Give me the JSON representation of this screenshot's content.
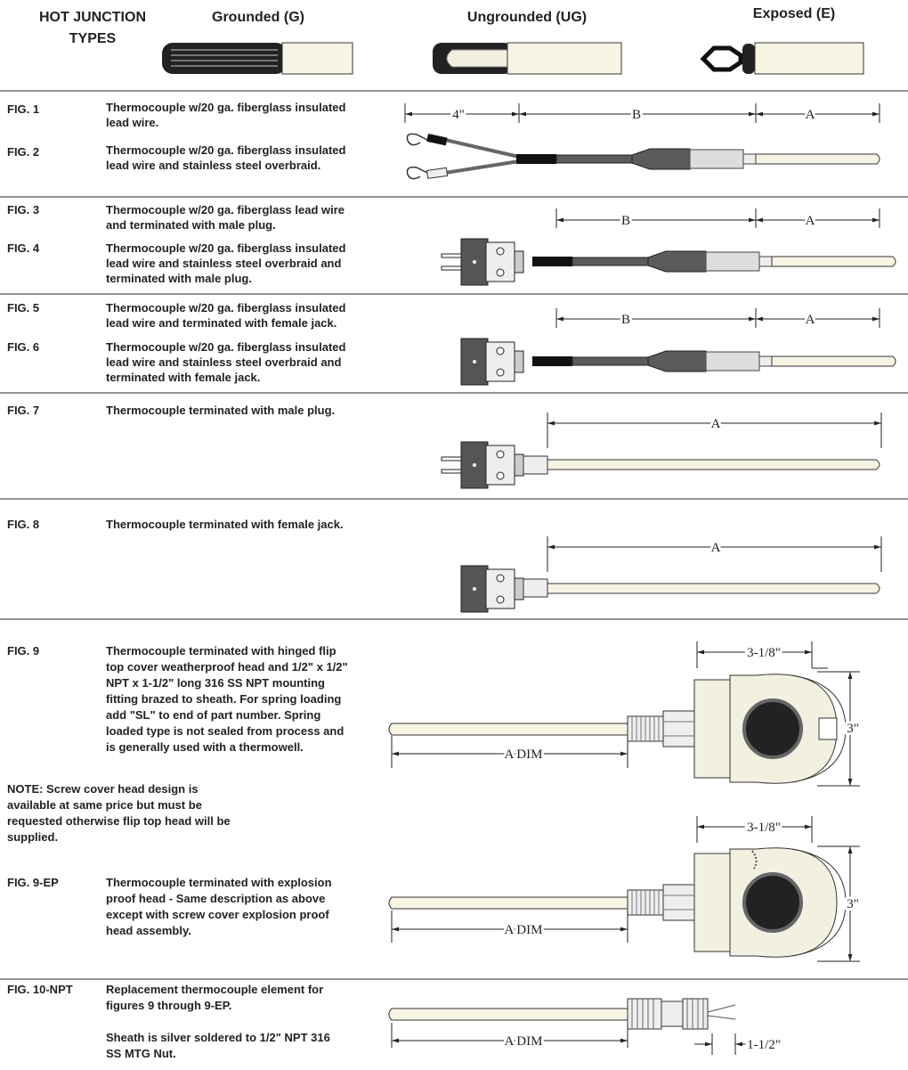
{
  "header": {
    "title_lines": [
      "HOT JUNCTION",
      "TYPES"
    ],
    "junctions": [
      "Grounded (G)",
      "Ungrounded (UG)",
      "Exposed (E)"
    ]
  },
  "sections": [
    {
      "figures": [
        {
          "label": "FIG. 1",
          "paragraphs": [
            [
              "Thermocouple w/20 ga. fiberglass insulated",
              "lead wire."
            ]
          ]
        },
        {
          "label": "FIG. 2",
          "paragraphs": [
            [
              "Thermocouple w/20 ga. fiberglass insulated",
              "lead wire and stainless steel overbraid."
            ]
          ]
        }
      ],
      "dims": [
        "4\"",
        "B",
        "A"
      ]
    },
    {
      "figures": [
        {
          "label": "FIG. 3",
          "paragraphs": [
            [
              "Thermocouple w/20 ga. fiberglass lead wire",
              "and terminated with male plug."
            ]
          ]
        },
        {
          "label": "FIG. 4",
          "paragraphs": [
            [
              "Thermocouple w/20 ga. fiberglass insulated",
              "lead wire and stainless steel overbraid and",
              "terminated with male plug."
            ]
          ]
        }
      ],
      "dims": [
        "B",
        "A"
      ]
    },
    {
      "figures": [
        {
          "label": "FIG. 5",
          "paragraphs": [
            [
              "Thermocouple w/20 ga. fiberglass insulated",
              "lead wire and terminated with female jack."
            ]
          ]
        },
        {
          "label": "FIG. 6",
          "paragraphs": [
            [
              "Thermocouple w/20 ga. fiberglass insulated",
              "lead wire and stainless steel overbraid and",
              "terminated with female jack."
            ]
          ]
        }
      ],
      "dims": [
        "B",
        "A"
      ]
    },
    {
      "figures": [
        {
          "label": "FIG. 7",
          "paragraphs": [
            [
              "Thermocouple terminated with male plug."
            ]
          ]
        }
      ],
      "dims": [
        "A"
      ]
    },
    {
      "figures": [
        {
          "label": "FIG. 8",
          "paragraphs": [
            [
              "Thermocouple terminated with female jack."
            ]
          ]
        }
      ],
      "dims": [
        "A"
      ]
    },
    {
      "figures": [
        {
          "label": "FIG. 9",
          "paragraphs": [
            [
              "Thermocouple terminated with hinged flip",
              "top cover weatherproof head and 1/2\" x 1/2\"",
              "NPT x 1-1/2\" long 316 SS NPT mounting",
              "fitting brazed to sheath.  For spring loading",
              "add \"SL\" to end of part number.  Spring",
              "loaded type is not sealed from process and",
              "is generally used with a thermowell."
            ]
          ]
        },
        {
          "label": "FIG. 9-EP",
          "paragraphs": [
            [
              "Thermocouple terminated with explosion",
              "proof head - Same description as above",
              "except with screw cover explosion proof",
              "head assembly."
            ]
          ]
        }
      ],
      "dims": [
        "3-1/8\"",
        "3\"",
        "A DIM",
        "3-1/8\"",
        "3\"",
        "A DIM"
      ]
    },
    {
      "figures": [
        {
          "label": "FIG. 10-NPT",
          "paragraphs": [
            [
              "Replacement thermocouple element for",
              "figures 9 through 9-EP."
            ],
            [
              "Sheath is silver soldered to 1/2\" NPT 316",
              "SS MTG Nut."
            ]
          ]
        }
      ],
      "dims": [
        "A DIM",
        "1-1/2\""
      ]
    }
  ],
  "note": {
    "lines": [
      "NOTE:  Screw cover head design is",
      "available at same price but must be",
      "requested otherwise flip top head will be",
      "supplied."
    ]
  }
}
